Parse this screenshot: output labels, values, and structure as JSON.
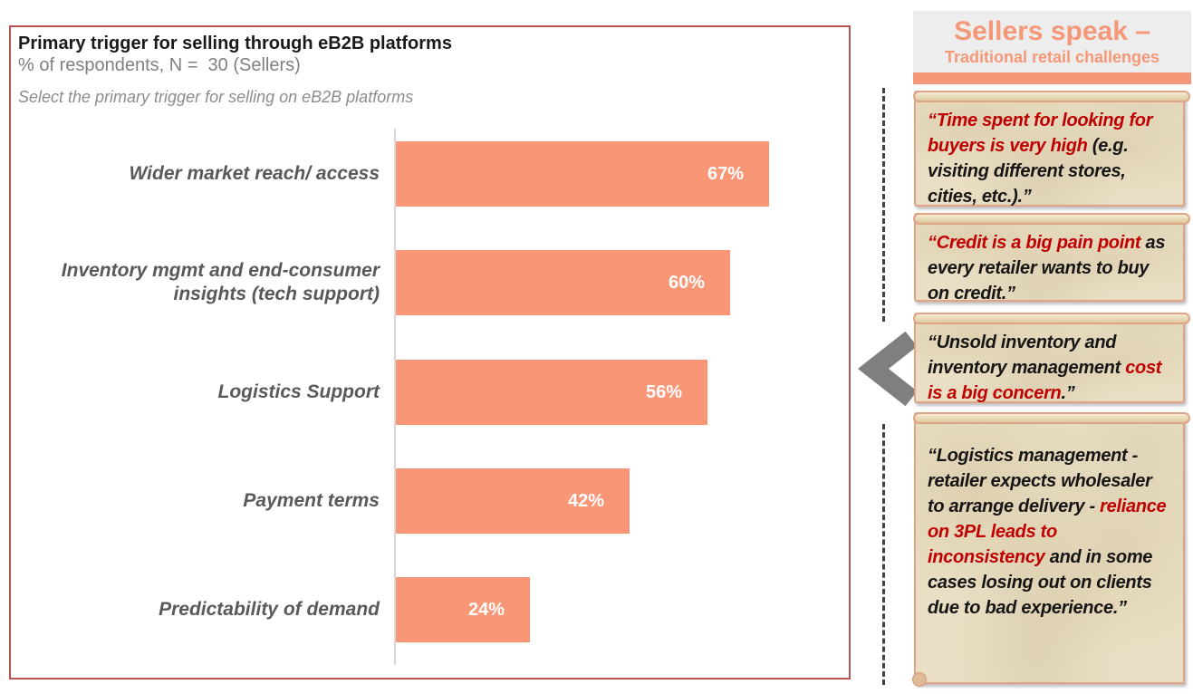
{
  "chart": {
    "title": "Primary trigger for selling through eB2B platforms",
    "subtitle": "% of respondents, N =  30 (Sellers)",
    "prompt": "Select the primary trigger for selling on eB2B platforms"
  },
  "chart_data": {
    "type": "bar",
    "orientation": "horizontal",
    "title": "Primary trigger for selling through eB2B platforms",
    "subtitle": "% of respondents, N = 30 (Sellers)",
    "categories": [
      "Wider market reach/ access",
      "Inventory mgmt and end-consumer insights (tech support)",
      "Logistics Support",
      "Payment terms",
      "Predictability of demand"
    ],
    "values": [
      67,
      60,
      56,
      42,
      24
    ],
    "value_labels": [
      "67%",
      "60%",
      "56%",
      "42%",
      "24%"
    ],
    "xlabel": "",
    "ylabel": "",
    "xlim": [
      0,
      100
    ],
    "grid": false,
    "legend": false,
    "bar_color": "#F89676",
    "value_label_position": "inside-end"
  },
  "sidebar": {
    "title_line1": "Sellers speak –",
    "title_line2": "Traditional retail challenges",
    "quotes": [
      {
        "segments": [
          {
            "text": "“Time spent for looking for buyers is very high ",
            "style": "red"
          },
          {
            "text": "(e.g. visiting different stores, cities, etc.).”",
            "style": "black"
          }
        ]
      },
      {
        "segments": [
          {
            "text": "“Credit is a big pain point",
            "style": "red"
          },
          {
            "text": " as every retailer wants to buy on credit.”",
            "style": "black"
          }
        ]
      },
      {
        "segments": [
          {
            "text": "“Unsold inventory and inventory management ",
            "style": "black"
          },
          {
            "text": "cost is a big concern",
            "style": "red"
          },
          {
            "text": ".”",
            "style": "black"
          }
        ]
      },
      {
        "segments": [
          {
            "text": "“Logistics management - retailer expects wholesaler to arrange delivery - ",
            "style": "black"
          },
          {
            "text": "reliance on 3PL leads to inconsistency",
            "style": "red"
          },
          {
            "text": " and in some cases losing out on clients due to bad experience.”",
            "style": "black"
          }
        ]
      }
    ]
  },
  "colors": {
    "bar": "#F89676",
    "accent": "#F59878",
    "quote_red": "#C00000",
    "panel_border": "#B95450",
    "label_gray": "#595959",
    "header_bg": "#EDEDED",
    "parchment": "#EADFC4"
  }
}
